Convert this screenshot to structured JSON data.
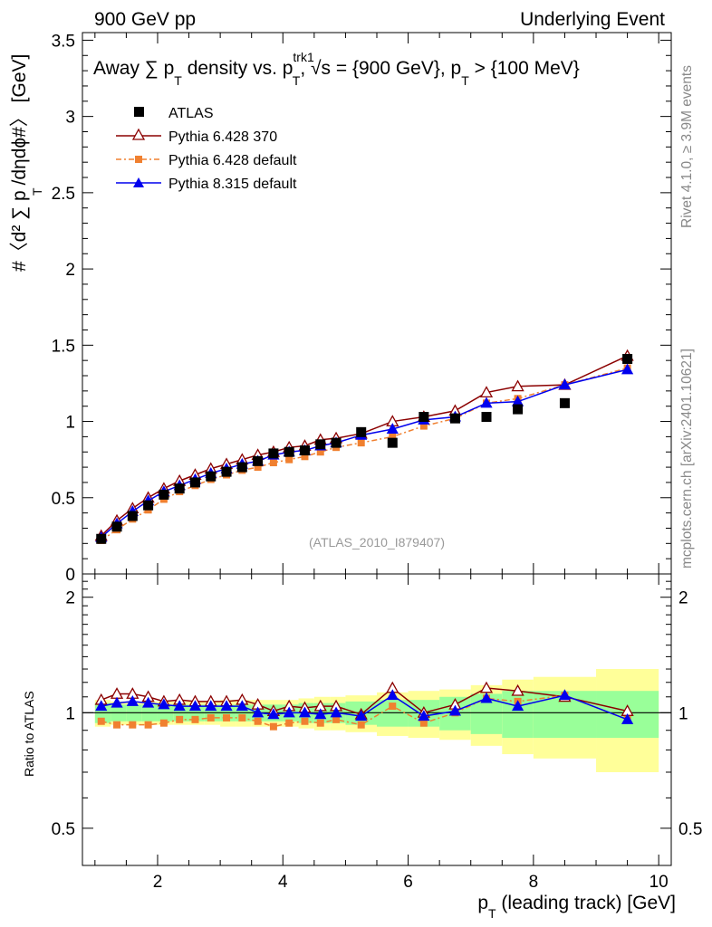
{
  "header": {
    "left": "900 GeV pp",
    "right": "Underlying Event"
  },
  "side": {
    "rivet": "Rivet 4.1.0, ≥ 3.9M events",
    "mcplots": "mcplots.cern.ch [arXiv:2401.10621]"
  },
  "plot": {
    "title_main": "Away ∑ p",
    "title_sub": "T",
    "title_rest1": " density vs. p",
    "title_trk": "trk1",
    "title_trk_sub": "T",
    "title_rest2": ", √s = {900 GeV}, p",
    "title_pt_sub": "T",
    "title_rest3": " > {100 MeV}",
    "analysis": "(ATLAS_2010_I879407)",
    "ylabel": "#〈d² ∑ p  /dηdϕ#〉 [GeV]",
    "ylabel_sub": "T",
    "ratio_ylabel": "Ratio to ATLAS",
    "xlabel": "p",
    "xlabel_sub": "T",
    "xlabel_rest": " (leading track) [GeV]"
  },
  "legend": {
    "atlas": "ATLAS",
    "py6_370": "Pythia 6.428 370",
    "py6_def": "Pythia 6.428 default",
    "py8_def": "Pythia 8.315 default"
  },
  "colors": {
    "atlas": "#000000",
    "py6_370": "#8b0000",
    "py6_def": "#f08030",
    "py8_def": "#0000ee",
    "band_inner": "#99ff99",
    "band_outer": "#ffff99"
  },
  "chart_data": {
    "type": "line",
    "x": [
      1.1,
      1.35,
      1.6,
      1.85,
      2.1,
      2.35,
      2.6,
      2.85,
      3.1,
      3.35,
      3.6,
      3.85,
      4.1,
      4.35,
      4.6,
      4.85,
      5.25,
      5.75,
      6.25,
      6.75,
      7.25,
      7.75,
      8.5,
      9.5
    ],
    "x_bins": [
      [
        1.0,
        1.25
      ],
      [
        1.25,
        1.5
      ],
      [
        1.5,
        1.75
      ],
      [
        1.75,
        2.0
      ],
      [
        2.0,
        2.25
      ],
      [
        2.25,
        2.5
      ],
      [
        2.5,
        2.75
      ],
      [
        2.75,
        3.0
      ],
      [
        3.0,
        3.25
      ],
      [
        3.25,
        3.5
      ],
      [
        3.5,
        3.75
      ],
      [
        3.75,
        4.0
      ],
      [
        4.0,
        4.25
      ],
      [
        4.25,
        4.5
      ],
      [
        4.5,
        4.75
      ],
      [
        4.75,
        5.0
      ],
      [
        5.0,
        5.5
      ],
      [
        5.5,
        6.0
      ],
      [
        6.0,
        6.5
      ],
      [
        6.5,
        7.0
      ],
      [
        7.0,
        7.5
      ],
      [
        7.5,
        8.0
      ],
      [
        8.0,
        9.0
      ],
      [
        9.0,
        10.0
      ]
    ],
    "series": [
      {
        "name": "ATLAS",
        "key": "atlas",
        "values": [
          0.23,
          0.31,
          0.38,
          0.45,
          0.52,
          0.56,
          0.6,
          0.64,
          0.67,
          0.7,
          0.74,
          0.79,
          0.8,
          0.81,
          0.85,
          0.86,
          0.93,
          0.86,
          1.03,
          1.02,
          1.03,
          1.08,
          1.12,
          1.41
        ]
      },
      {
        "name": "Pythia 6.428 370",
        "key": "py6_370",
        "values": [
          0.25,
          0.35,
          0.43,
          0.5,
          0.56,
          0.61,
          0.65,
          0.69,
          0.72,
          0.75,
          0.78,
          0.8,
          0.83,
          0.84,
          0.88,
          0.89,
          0.92,
          1.0,
          1.03,
          1.07,
          1.19,
          1.23,
          1.24,
          1.43
        ]
      },
      {
        "name": "Pythia 6.428 default",
        "key": "py6_def",
        "values": [
          0.22,
          0.29,
          0.36,
          0.42,
          0.49,
          0.54,
          0.58,
          0.62,
          0.65,
          0.68,
          0.7,
          0.73,
          0.75,
          0.77,
          0.8,
          0.83,
          0.86,
          0.9,
          0.97,
          1.02,
          1.12,
          1.15,
          1.24,
          1.35
        ]
      },
      {
        "name": "Pythia 8.315 default",
        "key": "py8_def",
        "values": [
          0.24,
          0.33,
          0.41,
          0.48,
          0.54,
          0.58,
          0.62,
          0.66,
          0.69,
          0.72,
          0.74,
          0.78,
          0.8,
          0.81,
          0.84,
          0.86,
          0.91,
          0.95,
          1.01,
          1.03,
          1.12,
          1.13,
          1.24,
          1.34
        ]
      }
    ],
    "ratio": {
      "py6_370": [
        1.08,
        1.12,
        1.12,
        1.1,
        1.07,
        1.08,
        1.07,
        1.07,
        1.07,
        1.08,
        1.05,
        1.01,
        1.04,
        1.03,
        1.04,
        1.04,
        0.99,
        1.16,
        1.0,
        1.05,
        1.16,
        1.14,
        1.1,
        1.01
      ],
      "py6_def": [
        0.95,
        0.93,
        0.93,
        0.93,
        0.94,
        0.96,
        0.96,
        0.97,
        0.97,
        0.97,
        0.95,
        0.92,
        0.94,
        0.95,
        0.94,
        0.96,
        0.93,
        1.04,
        0.94,
        1.0,
        1.09,
        1.07,
        1.11,
        0.96
      ],
      "py8_def": [
        1.04,
        1.06,
        1.07,
        1.06,
        1.05,
        1.04,
        1.04,
        1.04,
        1.04,
        1.04,
        1.0,
        0.99,
        1.0,
        1.0,
        0.99,
        1.0,
        0.98,
        1.11,
        0.98,
        1.01,
        1.09,
        1.04,
        1.11,
        0.96
      ],
      "band_inner": [
        0.06,
        0.05,
        0.05,
        0.05,
        0.05,
        0.05,
        0.05,
        0.05,
        0.05,
        0.05,
        0.05,
        0.05,
        0.05,
        0.06,
        0.06,
        0.06,
        0.07,
        0.08,
        0.08,
        0.1,
        0.12,
        0.14,
        0.14,
        0.14
      ],
      "band_outer": [
        0.08,
        0.07,
        0.07,
        0.07,
        0.07,
        0.07,
        0.07,
        0.07,
        0.08,
        0.08,
        0.08,
        0.08,
        0.08,
        0.09,
        0.1,
        0.1,
        0.11,
        0.13,
        0.14,
        0.15,
        0.18,
        0.22,
        0.24,
        0.3
      ]
    },
    "xlim": [
      0.8,
      10.2
    ],
    "ylim": [
      0,
      3.55
    ],
    "ratio_ylim": [
      0.4,
      2.3
    ],
    "yticks": [
      0,
      0.5,
      1,
      1.5,
      2,
      2.5,
      3,
      3.5
    ],
    "yticklabels": [
      "0",
      "0.5",
      "1",
      "1.5",
      "2",
      "2.5",
      "3",
      "3.5"
    ],
    "ratio_yticks": [
      0.5,
      1,
      2
    ],
    "ratio_yticklabels": [
      "0.5",
      "1",
      "2"
    ],
    "xticks": [
      2,
      4,
      6,
      8,
      10
    ],
    "xticklabels": [
      "2",
      "4",
      "6",
      "8",
      "10"
    ]
  }
}
